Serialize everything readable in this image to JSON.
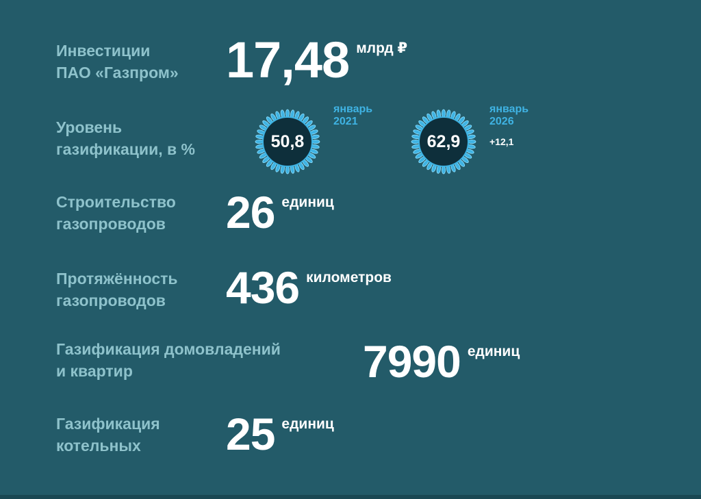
{
  "investments": {
    "label_line1": "Инвестиции",
    "label_line2": "ПАО «Газпром»",
    "value": "17,48",
    "unit": "млрд ₽"
  },
  "gasification_level": {
    "label_line1": "Уровень",
    "label_line2": "газификации, в %",
    "before": {
      "value": "50,8",
      "month": "январь",
      "year": "2021"
    },
    "after": {
      "value": "62,9",
      "month": "январь",
      "year": "2026",
      "delta": "+12,1"
    },
    "flame_color": "#3fb3e3",
    "burner_color": "#0e2f3b"
  },
  "pipelines_built": {
    "label_line1": "Строительство",
    "label_line2": "газопроводов",
    "value": "26",
    "unit": "единиц"
  },
  "pipelines_length": {
    "label_line1": "Протяжённость",
    "label_line2": "газопроводов",
    "value": "436",
    "unit": "километров"
  },
  "homes": {
    "label_line1": "Газификация домовладений",
    "label_line2": "и квартир",
    "value": "7990",
    "unit": "единиц"
  },
  "boilers": {
    "label_line1": "Газификация",
    "label_line2": "котельных",
    "value": "25",
    "unit": "единиц"
  },
  "colors": {
    "background": "#235b69",
    "label": "#8ec2cb",
    "value": "#ffffff"
  }
}
